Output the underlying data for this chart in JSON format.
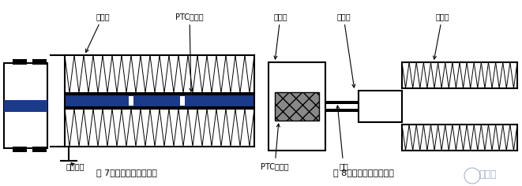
{
  "bg_color": "#ffffff",
  "line_color": "#000000",
  "blue_color": "#1a3a8a",
  "fig7_caption": "图 7。带电型空气加热器",
  "fig8_caption": "图 8。绝缘型空气加热器",
  "label_散热器_1": "散热器",
  "label_PTC": "PTC陶瓷片",
  "label_电极插头": "电极插头",
  "label_绝缘层": "绝缘层",
  "label_铝外壳": "铝外壳",
  "label_散热器_2": "散热器",
  "label_PTC2": "PTC陶瓷片",
  "label_电线": "电线",
  "font_size_label": 7,
  "font_size_caption": 8,
  "font_size_logo": 9
}
